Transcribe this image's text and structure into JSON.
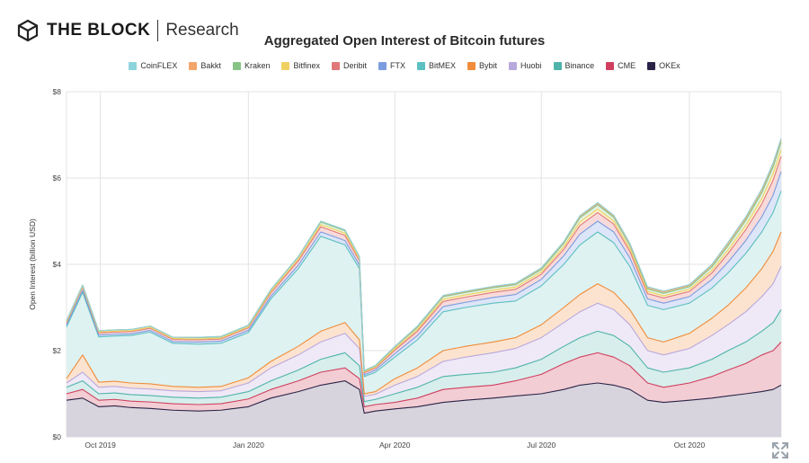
{
  "header": {
    "brand": "THE BLOCK",
    "section": "Research",
    "logo_icon": "cube-logo-icon"
  },
  "controls": {
    "expand_icon": "expand-arrows-icon"
  },
  "chart_data": {
    "type": "area",
    "stacked": true,
    "title": "Aggregated Open Interest of Bitcoin futures",
    "xlabel": "",
    "ylabel": "Open Interest (billion USD)",
    "ylim": [
      0,
      8
    ],
    "yticks": [
      "$0",
      "$2",
      "$4",
      "$6",
      "$8"
    ],
    "ytick_values": [
      0,
      2,
      4,
      6,
      8
    ],
    "xlim": [
      "2019-09-10",
      "2020-11-27"
    ],
    "xticks": [
      "Oct 2019",
      "Jan 2020",
      "Apr 2020",
      "Jul 2020",
      "Oct 2020"
    ],
    "xtick_dates": [
      "2019-10-01",
      "2020-01-01",
      "2020-04-01",
      "2020-07-01",
      "2020-10-01"
    ],
    "grid": true,
    "legend_position": "top",
    "x": [
      "2019-09-10",
      "2019-09-20",
      "2019-09-30",
      "2019-10-10",
      "2019-10-20",
      "2019-11-01",
      "2019-11-15",
      "2019-12-01",
      "2019-12-15",
      "2020-01-01",
      "2020-01-15",
      "2020-02-01",
      "2020-02-15",
      "2020-03-01",
      "2020-03-10",
      "2020-03-13",
      "2020-03-20",
      "2020-04-01",
      "2020-04-15",
      "2020-05-01",
      "2020-05-15",
      "2020-06-01",
      "2020-06-15",
      "2020-07-01",
      "2020-07-15",
      "2020-07-25",
      "2020-08-05",
      "2020-08-15",
      "2020-08-25",
      "2020-09-05",
      "2020-09-15",
      "2020-10-01",
      "2020-10-15",
      "2020-10-25",
      "2020-11-05",
      "2020-11-15",
      "2020-11-22",
      "2020-11-27"
    ],
    "series": [
      {
        "name": "OKEx",
        "color": "#2a2345",
        "fill": "#d8d4de",
        "values": [
          0.85,
          0.9,
          0.7,
          0.72,
          0.68,
          0.66,
          0.62,
          0.6,
          0.62,
          0.7,
          0.9,
          1.05,
          1.2,
          1.3,
          1.1,
          0.55,
          0.6,
          0.65,
          0.7,
          0.8,
          0.85,
          0.9,
          0.95,
          1.0,
          1.1,
          1.2,
          1.25,
          1.2,
          1.1,
          0.85,
          0.8,
          0.85,
          0.9,
          0.95,
          1.0,
          1.05,
          1.1,
          1.2
        ]
      },
      {
        "name": "CME",
        "color": "#d0405e",
        "fill": "#f2cdd4",
        "values": [
          0.15,
          0.2,
          0.15,
          0.15,
          0.15,
          0.15,
          0.15,
          0.15,
          0.15,
          0.18,
          0.2,
          0.25,
          0.3,
          0.3,
          0.25,
          0.15,
          0.15,
          0.15,
          0.2,
          0.3,
          0.3,
          0.3,
          0.35,
          0.45,
          0.6,
          0.65,
          0.7,
          0.65,
          0.55,
          0.4,
          0.35,
          0.4,
          0.5,
          0.6,
          0.7,
          0.85,
          0.9,
          1.0
        ]
      },
      {
        "name": "Binance",
        "color": "#4fb3a9",
        "fill": "#d7eeec",
        "values": [
          0.15,
          0.2,
          0.15,
          0.15,
          0.15,
          0.15,
          0.15,
          0.15,
          0.15,
          0.17,
          0.2,
          0.25,
          0.3,
          0.35,
          0.3,
          0.12,
          0.12,
          0.2,
          0.25,
          0.3,
          0.3,
          0.3,
          0.3,
          0.35,
          0.4,
          0.45,
          0.5,
          0.5,
          0.45,
          0.35,
          0.35,
          0.35,
          0.4,
          0.45,
          0.5,
          0.55,
          0.65,
          0.75
        ]
      },
      {
        "name": "Huobi",
        "color": "#b9a8dc",
        "fill": "#efe9f7",
        "values": [
          0.1,
          0.2,
          0.15,
          0.15,
          0.15,
          0.15,
          0.15,
          0.15,
          0.15,
          0.2,
          0.3,
          0.35,
          0.4,
          0.45,
          0.4,
          0.12,
          0.12,
          0.2,
          0.25,
          0.35,
          0.4,
          0.45,
          0.45,
          0.5,
          0.55,
          0.6,
          0.65,
          0.6,
          0.5,
          0.4,
          0.4,
          0.45,
          0.55,
          0.6,
          0.7,
          0.8,
          0.9,
          1.0
        ]
      },
      {
        "name": "Bybit",
        "color": "#f08c3a",
        "fill": "#fbe3cf",
        "values": [
          0.1,
          0.4,
          0.12,
          0.12,
          0.12,
          0.12,
          0.1,
          0.1,
          0.1,
          0.12,
          0.15,
          0.2,
          0.25,
          0.25,
          0.2,
          0.06,
          0.06,
          0.15,
          0.2,
          0.25,
          0.25,
          0.25,
          0.25,
          0.3,
          0.35,
          0.4,
          0.45,
          0.4,
          0.35,
          0.3,
          0.3,
          0.35,
          0.4,
          0.45,
          0.55,
          0.65,
          0.75,
          0.8
        ]
      },
      {
        "name": "BitMEX",
        "color": "#5cc0c0",
        "fill": "#def2f1",
        "values": [
          1.2,
          1.45,
          1.05,
          1.05,
          1.1,
          1.2,
          1.0,
          1.0,
          1.0,
          1.05,
          1.45,
          1.8,
          2.2,
          1.8,
          1.65,
          0.4,
          0.45,
          0.5,
          0.65,
          0.9,
          0.9,
          0.9,
          0.85,
          0.9,
          1.0,
          1.15,
          1.2,
          1.15,
          1.0,
          0.75,
          0.75,
          0.7,
          0.7,
          0.75,
          0.8,
          0.85,
          0.9,
          0.95
        ]
      },
      {
        "name": "FTX",
        "color": "#7b9de0",
        "fill": "#dde5f8",
        "values": [
          0.04,
          0.05,
          0.04,
          0.04,
          0.04,
          0.04,
          0.04,
          0.05,
          0.05,
          0.05,
          0.06,
          0.08,
          0.1,
          0.1,
          0.08,
          0.04,
          0.05,
          0.08,
          0.1,
          0.12,
          0.12,
          0.13,
          0.15,
          0.15,
          0.2,
          0.25,
          0.25,
          0.25,
          0.2,
          0.15,
          0.15,
          0.15,
          0.2,
          0.25,
          0.3,
          0.35,
          0.4,
          0.45
        ]
      },
      {
        "name": "Deribit",
        "color": "#e07878",
        "fill": "#f8dada",
        "values": [
          0.05,
          0.07,
          0.05,
          0.05,
          0.05,
          0.05,
          0.05,
          0.05,
          0.05,
          0.06,
          0.08,
          0.1,
          0.12,
          0.12,
          0.1,
          0.05,
          0.05,
          0.08,
          0.1,
          0.12,
          0.12,
          0.12,
          0.12,
          0.12,
          0.15,
          0.2,
          0.2,
          0.18,
          0.15,
          0.12,
          0.12,
          0.12,
          0.15,
          0.2,
          0.25,
          0.3,
          0.35,
          0.35
        ]
      },
      {
        "name": "Bitfinex",
        "color": "#f0d060",
        "fill": "#fbf3d4",
        "values": [
          0.02,
          0.02,
          0.02,
          0.02,
          0.02,
          0.02,
          0.02,
          0.02,
          0.02,
          0.02,
          0.03,
          0.04,
          0.05,
          0.05,
          0.04,
          0.02,
          0.02,
          0.03,
          0.04,
          0.05,
          0.05,
          0.05,
          0.05,
          0.05,
          0.06,
          0.08,
          0.08,
          0.07,
          0.06,
          0.05,
          0.05,
          0.05,
          0.06,
          0.08,
          0.1,
          0.12,
          0.15,
          0.15
        ]
      },
      {
        "name": "Kraken",
        "color": "#86c486",
        "fill": "#e2f2e2",
        "values": [
          0.03,
          0.03,
          0.03,
          0.03,
          0.03,
          0.03,
          0.03,
          0.03,
          0.03,
          0.03,
          0.04,
          0.05,
          0.06,
          0.06,
          0.05,
          0.02,
          0.03,
          0.04,
          0.05,
          0.06,
          0.06,
          0.06,
          0.06,
          0.06,
          0.08,
          0.1,
          0.1,
          0.09,
          0.08,
          0.06,
          0.06,
          0.06,
          0.08,
          0.1,
          0.12,
          0.14,
          0.16,
          0.18
        ]
      },
      {
        "name": "Bakkt",
        "color": "#f4a56a",
        "fill": "#fde6d4",
        "values": [
          0,
          0,
          0,
          0,
          0,
          0,
          0,
          0.01,
          0.01,
          0.01,
          0.01,
          0.01,
          0.02,
          0.02,
          0.01,
          0.01,
          0.01,
          0.01,
          0.02,
          0.02,
          0.02,
          0.02,
          0.02,
          0.03,
          0.03,
          0.03,
          0.03,
          0.03,
          0.03,
          0.03,
          0.03,
          0.03,
          0.04,
          0.05,
          0.05,
          0.06,
          0.06,
          0.06
        ]
      },
      {
        "name": "CoinFLEX",
        "color": "#8ed4dc",
        "fill": "#e3f4f6",
        "values": [
          0,
          0,
          0,
          0,
          0,
          0,
          0,
          0,
          0,
          0,
          0,
          0,
          0,
          0,
          0,
          0,
          0,
          0.01,
          0.01,
          0.01,
          0.01,
          0.01,
          0.01,
          0.01,
          0.01,
          0.02,
          0.02,
          0.02,
          0.02,
          0.02,
          0.02,
          0.02,
          0.02,
          0.03,
          0.03,
          0.03,
          0.03,
          0.03
        ]
      }
    ]
  }
}
